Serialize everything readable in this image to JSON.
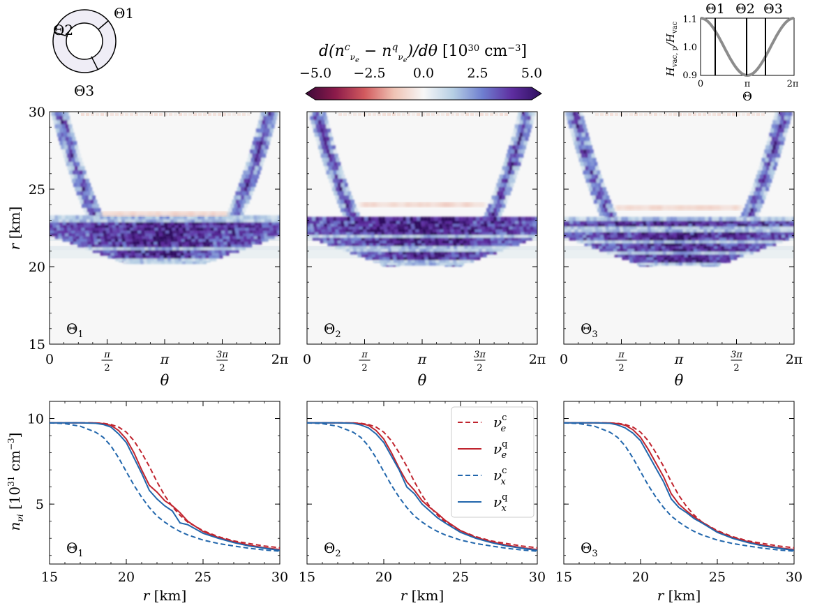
{
  "figure": {
    "inset_labels": [
      "Θ1",
      "Θ2",
      "Θ3"
    ],
    "colorbar": {
      "label": "d(n_νe^c − n_νe^q)/dθ  [10^30 cm^-3]",
      "label_main": "d(n",
      "label_tail": "/dθ",
      "label_units": "[10",
      "ticks": [
        "−5.0",
        "−2.5",
        "0.0",
        "2.5",
        "5.0"
      ],
      "range": [
        -5,
        5
      ],
      "stops": [
        "#3d0a3a",
        "#8b1a4a",
        "#d25a5e",
        "#efc3b4",
        "#f7f7f7",
        "#b6cfe4",
        "#6f7fd0",
        "#5e2ea0",
        "#2e0f5e"
      ]
    },
    "hamiltonian_inset": {
      "ylabel": "H_vac,p / H_vac",
      "xlabel": "Θ",
      "yticks": [
        "0.9",
        "1.0",
        "1.1"
      ],
      "xticks": [
        "0",
        "π",
        "2π"
      ],
      "theta_labels": [
        "Θ1",
        "Θ2",
        "Θ3"
      ],
      "curve_color": "#8c8c8c"
    },
    "heatmap_panels": [
      {
        "label": "Θ",
        "sub": "1"
      },
      {
        "label": "Θ",
        "sub": "2"
      },
      {
        "label": "Θ",
        "sub": "3"
      }
    ],
    "heatmap_axes": {
      "ylabel": "r [km]",
      "xlabel": "θ",
      "yticks": [
        "15",
        "20",
        "25",
        "30"
      ],
      "xticks": [
        "0",
        "π/2",
        "π",
        "3π/2",
        "2π"
      ]
    },
    "line_axes": {
      "ylabel": "n_νi  [10^31 cm^-3]",
      "xlabel": "r [km]",
      "yticks": [
        "5",
        "10"
      ],
      "xticks": [
        "15",
        "20",
        "25",
        "30"
      ]
    },
    "legend": [
      {
        "name": "νe c",
        "color": "#c0242e",
        "dash": true
      },
      {
        "name": "νe q",
        "color": "#c0242e",
        "dash": false
      },
      {
        "name": "νx c",
        "color": "#2166ac",
        "dash": true
      },
      {
        "name": "νx q",
        "color": "#2166ac",
        "dash": false
      }
    ]
  },
  "chart_data": [
    {
      "type": "heatmap",
      "title": "Θ1",
      "xlabel": "θ",
      "ylabel": "r [km]",
      "xlim": [
        0,
        6.283
      ],
      "ylim": [
        15,
        30
      ],
      "zlim": [
        -5,
        5
      ],
      "features": {
        "arc_bottom_r": 20.3,
        "arc_top_r": 30,
        "bands_r": [
          20.8,
          21.5,
          22.1,
          22.7
        ],
        "red_band_r": 23.4
      }
    },
    {
      "type": "heatmap",
      "title": "Θ2",
      "xlabel": "θ",
      "ylabel": "r [km]",
      "xlim": [
        0,
        6.283
      ],
      "ylim": [
        15,
        30
      ],
      "zlim": [
        -5,
        5
      ],
      "features": {
        "arc_bottom_r": 20.2,
        "arc_top_r": 30,
        "bands_r": [
          20.8,
          21.6,
          22.3,
          22.9
        ],
        "red_band_r": 24.0
      }
    },
    {
      "type": "heatmap",
      "title": "Θ3",
      "xlabel": "θ",
      "ylabel": "r [km]",
      "xlim": [
        0,
        6.283
      ],
      "ylim": [
        15,
        30
      ],
      "zlim": [
        -5,
        5
      ],
      "features": {
        "arc_bottom_r": 20.2,
        "arc_top_r": 30,
        "bands_r": [
          20.5,
          21.3,
          22.0,
          22.8
        ],
        "red_band_r": 23.8
      }
    },
    {
      "type": "line",
      "title": "Θ1",
      "xlabel": "r [km]",
      "ylabel": "n_νi [10^31 cm^-3]",
      "xlim": [
        15,
        30
      ],
      "ylim": [
        1.5,
        11
      ],
      "x": [
        15,
        16,
        17,
        18,
        18.5,
        19,
        19.5,
        20,
        20.5,
        21,
        21.5,
        22,
        22.5,
        23,
        23.5,
        24,
        25,
        26,
        27,
        28,
        29,
        30
      ],
      "series": [
        {
          "name": "νe c",
          "values": [
            9.75,
            9.75,
            9.75,
            9.74,
            9.72,
            9.65,
            9.5,
            9.2,
            8.7,
            8.0,
            7.2,
            6.3,
            5.5,
            4.85,
            4.35,
            3.95,
            3.45,
            3.1,
            2.85,
            2.7,
            2.55,
            2.45
          ]
        },
        {
          "name": "νe q",
          "values": [
            9.75,
            9.75,
            9.75,
            9.74,
            9.7,
            9.6,
            9.3,
            8.8,
            8.0,
            7.0,
            6.1,
            5.7,
            5.2,
            4.9,
            4.5,
            4.0,
            3.4,
            3.05,
            2.8,
            2.6,
            2.45,
            2.35
          ]
        },
        {
          "name": "νx c",
          "values": [
            9.75,
            9.7,
            9.55,
            9.2,
            8.9,
            8.4,
            7.7,
            6.9,
            6.1,
            5.4,
            4.8,
            4.3,
            3.95,
            3.65,
            3.4,
            3.2,
            2.9,
            2.7,
            2.55,
            2.42,
            2.32,
            2.25
          ]
        },
        {
          "name": "νx q",
          "values": [
            9.75,
            9.75,
            9.75,
            9.72,
            9.65,
            9.5,
            9.1,
            8.6,
            7.7,
            6.8,
            5.8,
            5.3,
            4.9,
            4.6,
            3.9,
            3.8,
            3.3,
            3.0,
            2.75,
            2.55,
            2.42,
            2.3
          ]
        }
      ]
    },
    {
      "type": "line",
      "title": "Θ2",
      "xlabel": "r [km]",
      "ylabel": "n_νi [10^31 cm^-3]",
      "xlim": [
        15,
        30
      ],
      "ylim": [
        1.5,
        11
      ],
      "x": [
        15,
        16,
        17,
        18,
        18.5,
        19,
        19.5,
        20,
        20.5,
        21,
        21.5,
        22,
        22.5,
        23,
        23.5,
        24,
        25,
        26,
        27,
        28,
        29,
        30
      ],
      "series": [
        {
          "name": "νe c",
          "values": [
            9.75,
            9.75,
            9.75,
            9.74,
            9.72,
            9.65,
            9.5,
            9.2,
            8.7,
            8.0,
            7.2,
            6.3,
            5.5,
            4.85,
            4.35,
            3.95,
            3.45,
            3.1,
            2.85,
            2.7,
            2.55,
            2.45
          ]
        },
        {
          "name": "νe q",
          "values": [
            9.75,
            9.75,
            9.75,
            9.74,
            9.7,
            9.6,
            9.3,
            8.8,
            8.0,
            7.1,
            6.3,
            5.8,
            5.2,
            4.8,
            4.45,
            4.05,
            3.45,
            3.05,
            2.8,
            2.6,
            2.45,
            2.35
          ]
        },
        {
          "name": "νx c",
          "values": [
            9.75,
            9.7,
            9.55,
            9.2,
            8.9,
            8.4,
            7.7,
            6.9,
            6.1,
            5.4,
            4.8,
            4.3,
            3.95,
            3.65,
            3.4,
            3.2,
            2.9,
            2.7,
            2.55,
            2.42,
            2.32,
            2.25
          ]
        },
        {
          "name": "νx q",
          "values": [
            9.75,
            9.75,
            9.75,
            9.72,
            9.62,
            9.45,
            9.1,
            8.6,
            7.8,
            7.0,
            6.0,
            5.6,
            5.0,
            4.6,
            4.2,
            3.9,
            3.35,
            3.0,
            2.75,
            2.55,
            2.42,
            2.3
          ]
        }
      ]
    },
    {
      "type": "line",
      "title": "Θ3",
      "xlabel": "r [km]",
      "ylabel": "n_νi [10^31 cm^-3]",
      "xlim": [
        15,
        30
      ],
      "ylim": [
        1.5,
        11
      ],
      "x": [
        15,
        16,
        17,
        18,
        18.5,
        19,
        19.5,
        20,
        20.5,
        21,
        21.5,
        22,
        22.5,
        23,
        23.5,
        24,
        25,
        26,
        27,
        28,
        29,
        30
      ],
      "series": [
        {
          "name": "νe c",
          "values": [
            9.75,
            9.75,
            9.75,
            9.74,
            9.72,
            9.65,
            9.5,
            9.2,
            8.7,
            8.0,
            7.2,
            6.3,
            5.5,
            4.85,
            4.35,
            3.95,
            3.45,
            3.1,
            2.85,
            2.7,
            2.55,
            2.45
          ]
        },
        {
          "name": "νe q",
          "values": [
            9.75,
            9.75,
            9.75,
            9.74,
            9.7,
            9.6,
            9.35,
            8.9,
            8.2,
            7.4,
            6.6,
            5.6,
            5.0,
            4.6,
            4.25,
            3.95,
            3.4,
            3.05,
            2.8,
            2.6,
            2.45,
            2.35
          ]
        },
        {
          "name": "νx c",
          "values": [
            9.75,
            9.7,
            9.55,
            9.2,
            8.9,
            8.4,
            7.7,
            6.9,
            6.1,
            5.4,
            4.8,
            4.3,
            3.95,
            3.65,
            3.4,
            3.2,
            2.9,
            2.7,
            2.55,
            2.42,
            2.32,
            2.25
          ]
        },
        {
          "name": "νx q",
          "values": [
            9.75,
            9.75,
            9.75,
            9.72,
            9.62,
            9.45,
            9.15,
            8.7,
            7.9,
            7.1,
            6.3,
            5.3,
            4.8,
            4.5,
            4.15,
            3.9,
            3.35,
            3.0,
            2.75,
            2.55,
            2.42,
            2.3
          ]
        }
      ]
    }
  ]
}
